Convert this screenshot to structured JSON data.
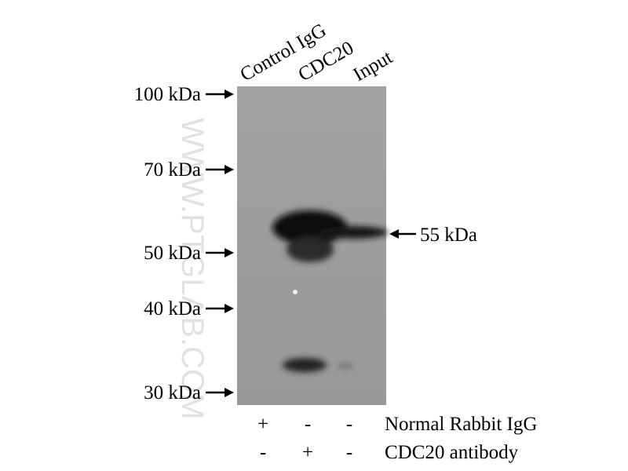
{
  "lanes": [
    "Control IgG",
    "CDC20",
    "Input"
  ],
  "markers": [
    "100 kDa",
    "70 kDa",
    "50 kDa",
    "40 kDa",
    "30 kDa"
  ],
  "band_label": "55 kDa",
  "watermark": "WWW.PTGLAB.COM",
  "conditions": [
    {
      "label": "Normal Rabbit IgG",
      "signs": [
        "+",
        "-",
        "-"
      ]
    },
    {
      "label": "CDC20 antibody",
      "signs": [
        "-",
        "+",
        "-"
      ]
    }
  ]
}
